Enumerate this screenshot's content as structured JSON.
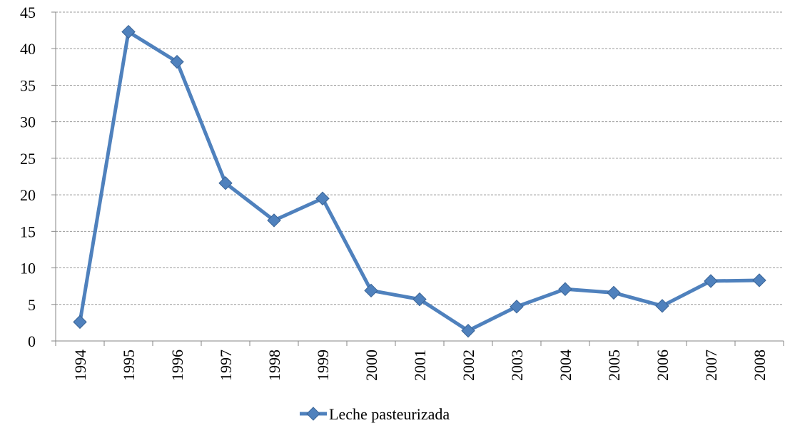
{
  "chart_data": {
    "type": "line",
    "categories": [
      "1994",
      "1995",
      "1996",
      "1997",
      "1998",
      "1999",
      "2000",
      "2001",
      "2002",
      "2003",
      "2004",
      "2005",
      "2006",
      "2007",
      "2008"
    ],
    "series": [
      {
        "name": "Leche pasteurizada",
        "color": "#4f81bd",
        "values": [
          2.6,
          42.3,
          38.2,
          21.6,
          16.5,
          19.5,
          6.9,
          5.7,
          1.4,
          4.7,
          7.1,
          6.6,
          4.8,
          8.2,
          8.3
        ]
      }
    ],
    "ylim": [
      0,
      45
    ],
    "yticks": [
      0,
      5,
      10,
      15,
      20,
      25,
      30,
      35,
      40,
      45
    ],
    "grid": true,
    "legend": "bottom"
  }
}
